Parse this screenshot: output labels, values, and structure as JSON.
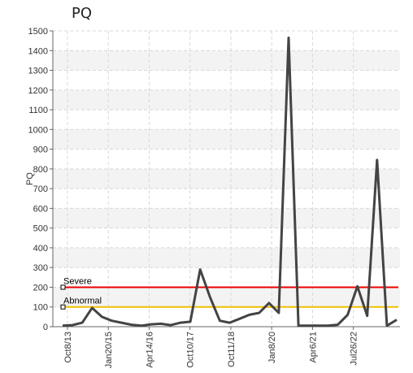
{
  "chart_data": {
    "type": "line",
    "title": "PQ",
    "ylabel": "PQ",
    "xlabel": "",
    "ylim": [
      0,
      1500
    ],
    "yticks": [
      0,
      100,
      200,
      300,
      400,
      500,
      600,
      700,
      800,
      900,
      1000,
      1100,
      1200,
      1300,
      1400,
      1500
    ],
    "xtick_labels": [
      "Oct8/13",
      "Jan20/15",
      "Apr14/16",
      "Oct10/17",
      "Oct11/18",
      "Jan8/20",
      "Apr6/21",
      "Jul26/22"
    ],
    "grid": true,
    "series": [
      {
        "values": [
          5,
          8,
          20,
          95,
          50,
          30,
          20,
          10,
          5,
          12,
          15,
          8,
          20,
          25,
          290,
          150,
          30,
          20,
          40,
          60,
          70,
          120,
          70,
          1465,
          5,
          5,
          5,
          5,
          10,
          60,
          205,
          55,
          845,
          5,
          35
        ],
        "color": "#444444"
      }
    ],
    "reference_lines": [
      {
        "label": "Severe",
        "value": 200,
        "color": "#ee0000"
      },
      {
        "label": "Abnormal",
        "value": 100,
        "color": "#f0c000"
      }
    ]
  }
}
